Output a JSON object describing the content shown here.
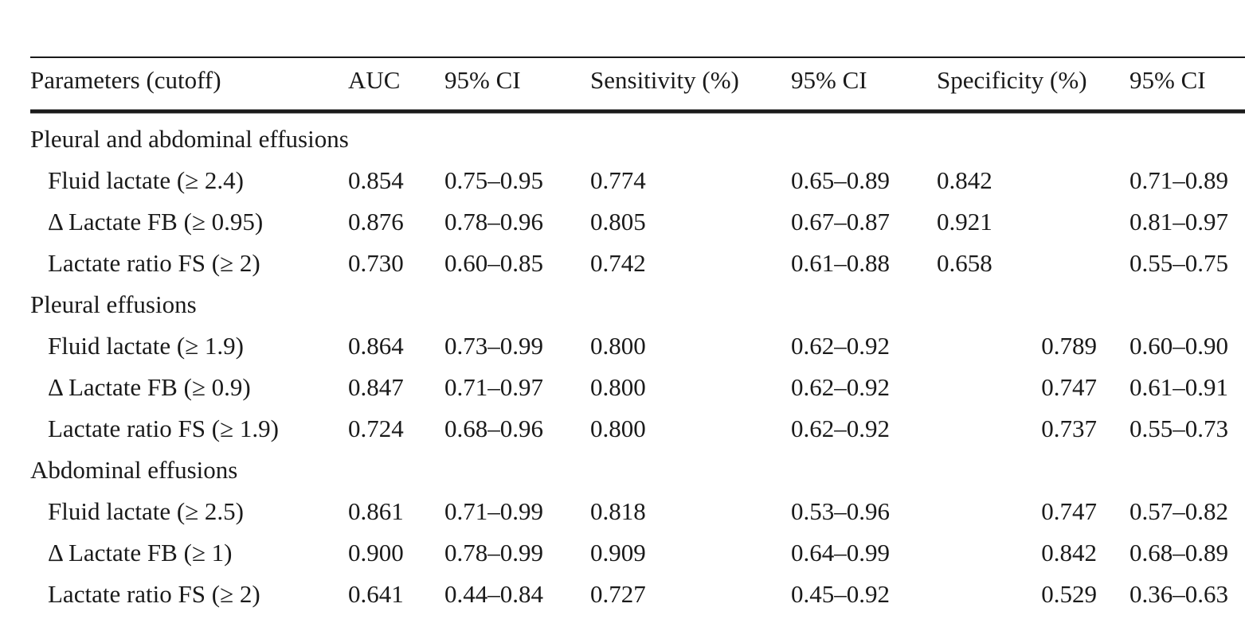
{
  "table": {
    "header": [
      "Parameters (cutoff)",
      "AUC",
      "95% CI",
      "Sensitivity (%)",
      "95% CI",
      "Specificity (%)",
      "95% CI"
    ],
    "groups": [
      {
        "title": "Pleural and abdominal effusions",
        "rows": [
          [
            "Fluid lactate (≥ 2.4)",
            "0.854",
            "0.75–0.95",
            "0.774",
            "0.65–0.89",
            "0.842",
            "0.71–0.89"
          ],
          [
            "Δ Lactate FB (≥ 0.95)",
            "0.876",
            "0.78–0.96",
            "0.805",
            "0.67–0.87",
            "0.921",
            "0.81–0.97"
          ],
          [
            "Lactate ratio FS (≥ 2)",
            "0.730",
            "0.60–0.85",
            "0.742",
            "0.61–0.88",
            "0.658",
            "0.55–0.75"
          ]
        ]
      },
      {
        "title": "Pleural effusions",
        "rows": [
          [
            "Fluid lactate (≥ 1.9)",
            "0.864",
            "0.73–0.99",
            "0.800",
            "0.62–0.92",
            "0.789",
            "0.60–0.90"
          ],
          [
            "Δ Lactate FB (≥ 0.9)",
            "0.847",
            "0.71–0.97",
            "0.800",
            "0.62–0.92",
            "0.747",
            "0.61–0.91"
          ],
          [
            "Lactate ratio FS (≥ 1.9)",
            "0.724",
            "0.68–0.96",
            "0.800",
            "0.62–0.92",
            "0.737",
            "0.55–0.73"
          ]
        ]
      },
      {
        "title": "Abdominal effusions",
        "rows": [
          [
            "Fluid lactate (≥ 2.5)",
            "0.861",
            "0.71–0.99",
            "0.818",
            "0.53–0.96",
            "0.747",
            "0.57–0.82"
          ],
          [
            "Δ Lactate FB (≥ 1)",
            "0.900",
            "0.78–0.99",
            "0.909",
            "0.64–0.99",
            "0.842",
            "0.68–0.89"
          ],
          [
            "Lactate ratio FS (≥ 2)",
            "0.641",
            "0.44–0.84",
            "0.727",
            "0.45–0.92",
            "0.529",
            "0.36–0.63"
          ]
        ]
      }
    ]
  }
}
